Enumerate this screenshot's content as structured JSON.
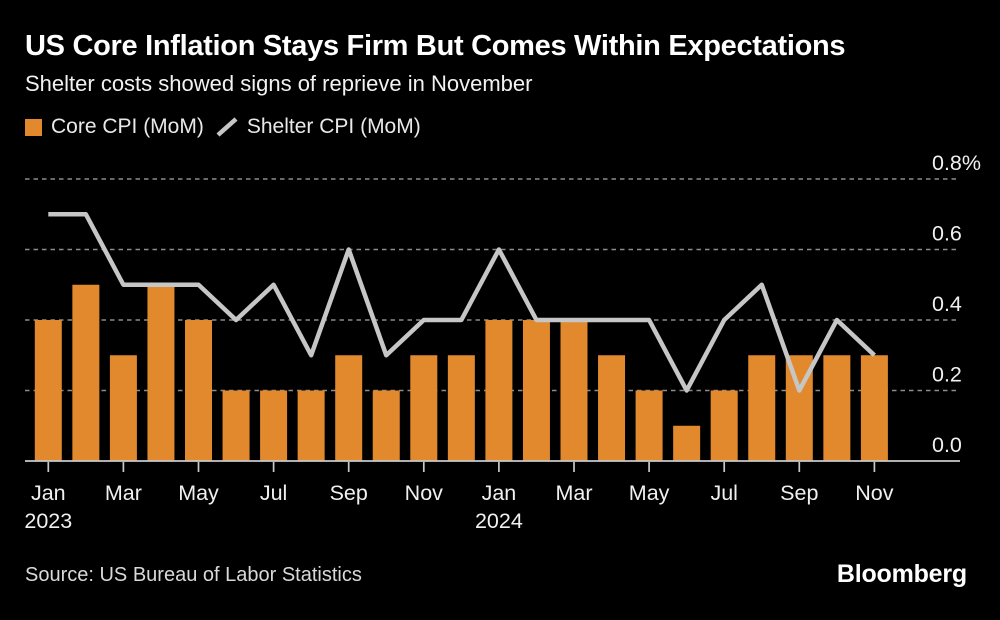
{
  "header": {
    "title": "US Core Inflation Stays Firm But Comes Within Expectations",
    "subtitle": "Shelter costs showed signs of reprieve in November"
  },
  "legend": {
    "items": [
      {
        "label": "Core CPI (MoM)",
        "swatch": "bar-square",
        "color": "#e1892c"
      },
      {
        "label": "Shelter CPI (MoM)",
        "swatch": "line-segment",
        "color": "#c6c6c6"
      }
    ]
  },
  "chart_data": {
    "type": "bar",
    "title": "US Core Inflation Stays Firm But Comes Within Expectations",
    "subtitle": "Shelter costs showed signs of reprieve in November",
    "unit": "%",
    "ylim": [
      0,
      0.8
    ],
    "grid": "horizontal dashed",
    "legend_position": "top-left",
    "y_axis_side": "right",
    "categories": [
      "Jan 2023",
      "Feb 2023",
      "Mar 2023",
      "Apr 2023",
      "May 2023",
      "Jun 2023",
      "Jul 2023",
      "Aug 2023",
      "Sep 2023",
      "Oct 2023",
      "Nov 2023",
      "Dec 2023",
      "Jan 2024",
      "Feb 2024",
      "Mar 2024",
      "Apr 2024",
      "May 2024",
      "Jun 2024",
      "Jul 2024",
      "Aug 2024",
      "Sep 2024",
      "Oct 2024",
      "Nov 2024"
    ],
    "series": [
      {
        "name": "Core CPI (MoM)",
        "render": "bar",
        "color": "#e1892c",
        "values": [
          0.4,
          0.5,
          0.3,
          0.5,
          0.4,
          0.2,
          0.2,
          0.2,
          0.3,
          0.2,
          0.3,
          0.3,
          0.4,
          0.4,
          0.4,
          0.3,
          0.2,
          0.1,
          0.2,
          0.3,
          0.3,
          0.3,
          0.3
        ]
      },
      {
        "name": "Shelter CPI (MoM)",
        "render": "line",
        "color": "#c6c6c6",
        "values": [
          0.7,
          0.7,
          0.5,
          0.5,
          0.5,
          0.4,
          0.5,
          0.3,
          0.6,
          0.3,
          0.4,
          0.4,
          0.6,
          0.4,
          0.4,
          0.4,
          0.4,
          0.2,
          0.4,
          0.5,
          0.2,
          0.4,
          0.3
        ]
      }
    ],
    "y_ticks": {
      "values": [
        0,
        0.2,
        0.4,
        0.6,
        0.8
      ],
      "labels": [
        "0.0",
        "0.2",
        "0.4",
        "0.6",
        "0.8%"
      ]
    },
    "x_ticks": [
      {
        "index": 0,
        "month": "Jan",
        "year": "2023"
      },
      {
        "index": 2,
        "month": "Mar"
      },
      {
        "index": 4,
        "month": "May"
      },
      {
        "index": 6,
        "month": "Jul"
      },
      {
        "index": 8,
        "month": "Sep"
      },
      {
        "index": 10,
        "month": "Nov"
      },
      {
        "index": 12,
        "month": "Jan",
        "year": "2024"
      },
      {
        "index": 14,
        "month": "Mar"
      },
      {
        "index": 16,
        "month": "May"
      },
      {
        "index": 18,
        "month": "Jul"
      },
      {
        "index": 20,
        "month": "Sep"
      },
      {
        "index": 22,
        "month": "Nov"
      }
    ]
  },
  "footer": {
    "source": "Source: US Bureau of Labor Statistics",
    "brand": "Bloomberg"
  },
  "colors": {
    "background": "#000000",
    "bar": "#e1892c",
    "line": "#c6c6c6",
    "grid": "#8c8c8c",
    "baseline": "#c9c9c9",
    "axis_text": "#f0f0f0",
    "title_text": "#ffffff",
    "source_text": "#d9d9d9"
  }
}
